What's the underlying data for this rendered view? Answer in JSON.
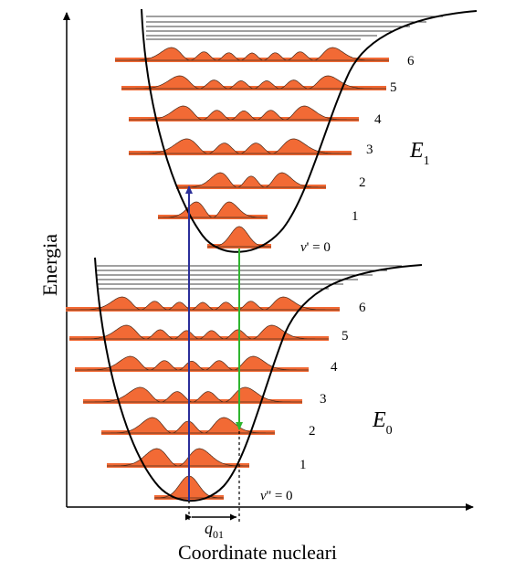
{
  "axes": {
    "y_label": "Energia",
    "x_label": "Coordinate nucleari"
  },
  "upper_state": {
    "symbol": "E",
    "subscript": "1",
    "vib_levels": [
      "v' = 0",
      "1",
      "2",
      "3",
      "4",
      "5",
      "6"
    ]
  },
  "lower_state": {
    "symbol": "E",
    "subscript": "0",
    "vib_levels": [
      "v'' = 0",
      "1",
      "2",
      "3",
      "4",
      "5",
      "6"
    ]
  },
  "displacement": {
    "symbol": "q",
    "subscript": "01"
  },
  "colors": {
    "wavefunction_fill": "#f26a35",
    "absorption_arrow": "#2b2f9a",
    "emission_arrow": "#2fb52f",
    "curve": "#000000"
  }
}
